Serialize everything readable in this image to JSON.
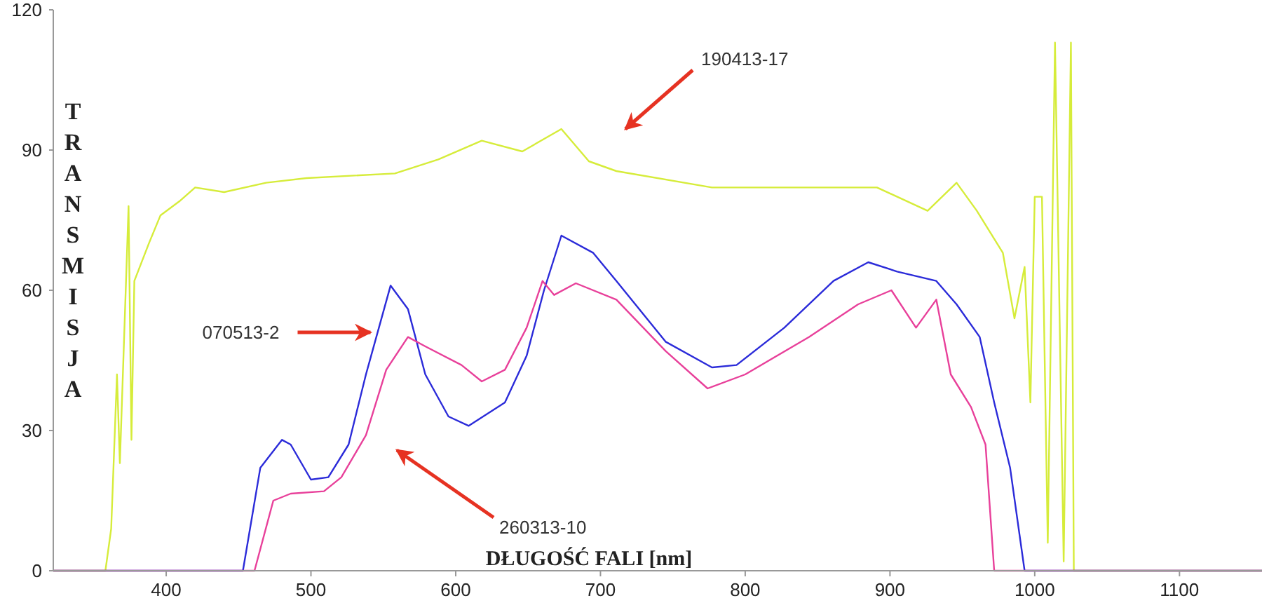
{
  "chart_data": {
    "type": "line",
    "xlabel": "DŁUGOŚĆ FALI [nm]",
    "ylabel": "TRANSMISJA",
    "xlim": [
      322,
      1157
    ],
    "xticks": [
      400,
      500,
      600,
      700,
      800,
      900,
      1000,
      1100
    ],
    "ylim": [
      0,
      120
    ],
    "yticks": [
      0,
      30,
      60,
      90,
      120
    ],
    "grid": false,
    "marker": "none",
    "line_style": "solid",
    "series": [
      {
        "color": "#d6ec3a",
        "x": [
          322,
          358,
          362,
          366,
          368,
          374,
          376,
          378,
          388,
          396,
          409,
          420,
          440,
          469,
          497,
          558,
          588,
          618,
          646,
          673,
          692,
          711,
          777,
          844,
          891,
          926,
          946,
          960,
          978,
          986,
          993,
          997,
          1000,
          1005,
          1009,
          1014,
          1020,
          1025,
          1027,
          1157
        ],
        "values": [
          0,
          0,
          9,
          42,
          23,
          78,
          28,
          62,
          70,
          76,
          79,
          82,
          81,
          83,
          84,
          85,
          88,
          92,
          89.7,
          94.5,
          87.6,
          85.5,
          82,
          82,
          82,
          77,
          83,
          77,
          68,
          54,
          65,
          36,
          80,
          80,
          6,
          113,
          2,
          113,
          0,
          0
        ]
      },
      {
        "color": "#2b2bd9",
        "x": [
          322,
          453,
          465,
          480,
          486,
          500,
          512,
          526,
          538,
          555,
          567,
          579,
          595,
          609,
          634,
          649,
          661,
          673,
          695,
          711,
          745,
          777,
          794,
          827,
          861,
          885,
          905,
          932,
          946,
          962,
          972,
          983,
          993,
          1157
        ],
        "values": [
          0,
          0,
          22,
          28,
          27,
          19.5,
          20,
          27,
          42,
          61,
          56,
          42,
          33,
          31,
          36,
          46,
          60,
          71.7,
          68,
          62,
          49,
          43.5,
          44,
          52,
          62,
          66,
          64,
          62,
          57,
          50,
          36,
          22,
          0,
          0
        ]
      },
      {
        "color": "#e8409a",
        "x": [
          322,
          461,
          474,
          486,
          509,
          521,
          538,
          552,
          567,
          579,
          604,
          618,
          634,
          649,
          660,
          668,
          683,
          711,
          745,
          774,
          800,
          844,
          878,
          901,
          918,
          932,
          942,
          956,
          966,
          972,
          1157
        ],
        "values": [
          0,
          0,
          15,
          16.5,
          17,
          20,
          29,
          43,
          50,
          48,
          44,
          40.5,
          43,
          52,
          62,
          59,
          61.5,
          58,
          47,
          39,
          42,
          50,
          57,
          60,
          52,
          58,
          42,
          35,
          27,
          0,
          0
        ]
      }
    ],
    "annotations": [
      "190413-17",
      {
        "text": "070513-2",
        "x": 546,
        "y": 51
      },
      "260313-10"
    ]
  }
}
